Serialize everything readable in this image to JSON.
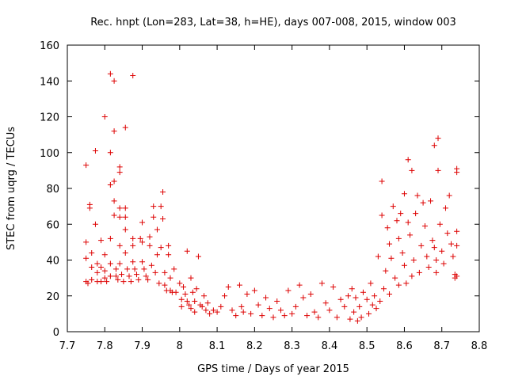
{
  "chart_data": {
    "type": "scatter",
    "title": "Rec. hnpt (Lon=283, Lat=38, h=HE), days 007-008, 2015, window 003",
    "xlabel": "GPS time / Days of year 2015",
    "ylabel": "STEC from uqrg / TECUs",
    "xlim": [
      7.7,
      8.8
    ],
    "ylim": [
      0,
      160
    ],
    "xticks": [
      "7.7",
      "7.8",
      "7.9",
      "8",
      "8.1",
      "8.2",
      "8.3",
      "8.4",
      "8.5",
      "8.6",
      "8.7",
      "8.8"
    ],
    "yticks": [
      "0",
      "20",
      "40",
      "60",
      "80",
      "100",
      "120",
      "140",
      "160"
    ],
    "grid": false,
    "legend": false,
    "marker": "+",
    "color": "#dd0000",
    "points": [
      [
        7.75,
        93
      ],
      [
        7.75,
        50
      ],
      [
        7.75,
        41
      ],
      [
        7.75,
        28
      ],
      [
        7.755,
        27
      ],
      [
        7.76,
        71
      ],
      [
        7.76,
        69
      ],
      [
        7.765,
        44
      ],
      [
        7.765,
        36
      ],
      [
        7.765,
        29
      ],
      [
        7.775,
        101
      ],
      [
        7.775,
        60
      ],
      [
        7.78,
        38
      ],
      [
        7.78,
        33
      ],
      [
        7.78,
        28
      ],
      [
        7.79,
        51
      ],
      [
        7.79,
        36
      ],
      [
        7.79,
        28
      ],
      [
        7.8,
        120
      ],
      [
        7.8,
        43
      ],
      [
        7.8,
        34
      ],
      [
        7.8,
        30
      ],
      [
        7.805,
        28
      ],
      [
        7.815,
        144
      ],
      [
        7.815,
        100
      ],
      [
        7.815,
        82
      ],
      [
        7.815,
        52
      ],
      [
        7.815,
        38
      ],
      [
        7.815,
        31
      ],
      [
        7.825,
        140
      ],
      [
        7.825,
        112
      ],
      [
        7.825,
        84
      ],
      [
        7.825,
        73
      ],
      [
        7.825,
        65
      ],
      [
        7.83,
        35
      ],
      [
        7.83,
        31
      ],
      [
        7.835,
        29
      ],
      [
        7.84,
        92
      ],
      [
        7.84,
        89
      ],
      [
        7.84,
        69
      ],
      [
        7.84,
        64
      ],
      [
        7.84,
        48
      ],
      [
        7.84,
        38
      ],
      [
        7.845,
        32
      ],
      [
        7.85,
        28
      ],
      [
        7.855,
        114
      ],
      [
        7.855,
        69
      ],
      [
        7.855,
        64
      ],
      [
        7.855,
        57
      ],
      [
        7.855,
        44
      ],
      [
        7.86,
        35
      ],
      [
        7.865,
        31
      ],
      [
        7.87,
        28
      ],
      [
        7.875,
        143
      ],
      [
        7.875,
        52
      ],
      [
        7.875,
        48
      ],
      [
        7.875,
        39
      ],
      [
        7.88,
        35
      ],
      [
        7.885,
        32
      ],
      [
        7.89,
        29
      ],
      [
        7.895,
        52
      ],
      [
        7.9,
        61
      ],
      [
        7.9,
        50
      ],
      [
        7.9,
        39
      ],
      [
        7.905,
        35
      ],
      [
        7.91,
        31
      ],
      [
        7.915,
        29
      ],
      [
        7.92,
        53
      ],
      [
        7.92,
        48
      ],
      [
        7.925,
        37
      ],
      [
        7.93,
        70
      ],
      [
        7.93,
        64
      ],
      [
        7.935,
        33
      ],
      [
        7.94,
        57
      ],
      [
        7.94,
        43
      ],
      [
        7.945,
        27
      ],
      [
        7.95,
        70
      ],
      [
        7.95,
        47
      ],
      [
        7.955,
        63
      ],
      [
        7.955,
        78
      ],
      [
        7.96,
        33
      ],
      [
        7.96,
        26
      ],
      [
        7.965,
        23
      ],
      [
        7.97,
        43
      ],
      [
        7.97,
        48
      ],
      [
        7.975,
        23
      ],
      [
        7.975,
        30
      ],
      [
        7.98,
        22
      ],
      [
        7.985,
        35
      ],
      [
        7.99,
        22
      ],
      [
        8.0,
        27
      ],
      [
        8.005,
        18
      ],
      [
        8.005,
        14
      ],
      [
        8.01,
        25
      ],
      [
        8.015,
        21
      ],
      [
        8.02,
        45
      ],
      [
        8.02,
        17
      ],
      [
        8.025,
        15
      ],
      [
        8.03,
        30
      ],
      [
        8.03,
        13
      ],
      [
        8.035,
        22
      ],
      [
        8.04,
        17
      ],
      [
        8.04,
        11
      ],
      [
        8.045,
        24
      ],
      [
        8.05,
        42
      ],
      [
        8.055,
        15
      ],
      [
        8.06,
        14
      ],
      [
        8.065,
        20
      ],
      [
        8.07,
        12
      ],
      [
        8.075,
        16
      ],
      [
        8.08,
        10
      ],
      [
        8.09,
        12
      ],
      [
        8.1,
        11
      ],
      [
        8.11,
        14
      ],
      [
        8.12,
        20
      ],
      [
        8.13,
        25
      ],
      [
        8.14,
        12
      ],
      [
        8.15,
        9
      ],
      [
        8.16,
        26
      ],
      [
        8.165,
        14
      ],
      [
        8.17,
        11
      ],
      [
        8.18,
        21
      ],
      [
        8.19,
        10
      ],
      [
        8.2,
        23
      ],
      [
        8.21,
        15
      ],
      [
        8.22,
        9
      ],
      [
        8.23,
        19
      ],
      [
        8.24,
        13
      ],
      [
        8.25,
        8
      ],
      [
        8.26,
        17
      ],
      [
        8.27,
        12
      ],
      [
        8.28,
        9
      ],
      [
        8.29,
        23
      ],
      [
        8.3,
        10
      ],
      [
        8.31,
        14
      ],
      [
        8.32,
        26
      ],
      [
        8.33,
        19
      ],
      [
        8.34,
        9
      ],
      [
        8.35,
        21
      ],
      [
        8.36,
        11
      ],
      [
        8.37,
        8
      ],
      [
        8.38,
        27
      ],
      [
        8.39,
        16
      ],
      [
        8.4,
        12
      ],
      [
        8.41,
        25
      ],
      [
        8.42,
        8
      ],
      [
        8.43,
        18
      ],
      [
        8.44,
        14
      ],
      [
        8.45,
        20
      ],
      [
        8.455,
        7
      ],
      [
        8.46,
        24
      ],
      [
        8.465,
        11
      ],
      [
        8.47,
        19
      ],
      [
        8.475,
        6
      ],
      [
        8.48,
        14
      ],
      [
        8.485,
        8
      ],
      [
        8.49,
        22
      ],
      [
        8.5,
        18
      ],
      [
        8.505,
        10
      ],
      [
        8.51,
        27
      ],
      [
        8.515,
        15
      ],
      [
        8.52,
        20
      ],
      [
        8.525,
        13
      ],
      [
        8.53,
        42
      ],
      [
        8.535,
        17
      ],
      [
        8.54,
        84
      ],
      [
        8.54,
        65
      ],
      [
        8.545,
        24
      ],
      [
        8.55,
        34
      ],
      [
        8.555,
        58
      ],
      [
        8.56,
        49
      ],
      [
        8.56,
        21
      ],
      [
        8.565,
        41
      ],
      [
        8.57,
        70
      ],
      [
        8.575,
        30
      ],
      [
        8.58,
        62
      ],
      [
        8.585,
        52
      ],
      [
        8.585,
        26
      ],
      [
        8.59,
        66
      ],
      [
        8.595,
        44
      ],
      [
        8.6,
        77
      ],
      [
        8.6,
        37
      ],
      [
        8.605,
        27
      ],
      [
        8.61,
        96
      ],
      [
        8.61,
        61
      ],
      [
        8.615,
        54
      ],
      [
        8.62,
        90
      ],
      [
        8.62,
        31
      ],
      [
        8.625,
        40
      ],
      [
        8.63,
        66
      ],
      [
        8.635,
        76
      ],
      [
        8.64,
        33
      ],
      [
        8.645,
        48
      ],
      [
        8.65,
        72
      ],
      [
        8.655,
        59
      ],
      [
        8.66,
        42
      ],
      [
        8.665,
        36
      ],
      [
        8.67,
        73
      ],
      [
        8.675,
        51
      ],
      [
        8.68,
        104
      ],
      [
        8.68,
        47
      ],
      [
        8.685,
        40
      ],
      [
        8.69,
        90
      ],
      [
        8.69,
        108
      ],
      [
        8.695,
        60
      ],
      [
        8.7,
        45
      ],
      [
        8.705,
        38
      ],
      [
        8.71,
        69
      ],
      [
        8.715,
        55
      ],
      [
        8.72,
        76
      ],
      [
        8.725,
        49
      ],
      [
        8.73,
        42
      ],
      [
        8.735,
        32
      ],
      [
        8.74,
        91
      ],
      [
        8.74,
        89
      ],
      [
        8.74,
        56
      ],
      [
        8.74,
        48
      ],
      [
        8.74,
        31
      ],
      [
        8.735,
        30
      ],
      [
        8.685,
        33
      ]
    ]
  }
}
